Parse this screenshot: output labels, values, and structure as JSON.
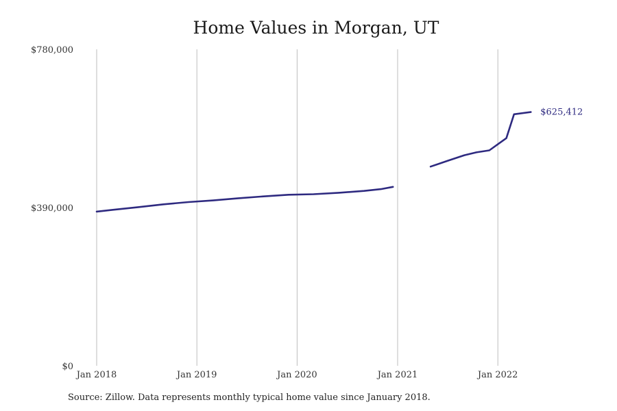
{
  "chart_data": {
    "type": "line",
    "title": "Home Values in Morgan, UT",
    "xlabel": "",
    "ylabel": "",
    "x_range": [
      "2018-01-01",
      "2022-12-01"
    ],
    "ylim": [
      0,
      780000
    ],
    "y_ticks": [
      {
        "value": 0,
        "label": "$0"
      },
      {
        "value": 390000,
        "label": "$390,000"
      },
      {
        "value": 780000,
        "label": "$780,000"
      }
    ],
    "x_ticks": [
      {
        "date": "2018-01-01",
        "label": "Jan 2018"
      },
      {
        "date": "2019-01-01",
        "label": "Jan 2019"
      },
      {
        "date": "2020-01-01",
        "label": "Jan 2020"
      },
      {
        "date": "2021-01-01",
        "label": "Jan 2021"
      },
      {
        "date": "2022-01-01",
        "label": "Jan 2022"
      }
    ],
    "grid": {
      "vertical": true,
      "horizontal": false
    },
    "line_color": "#2e2a80",
    "end_label": "$625,412",
    "series": [
      {
        "segments": [
          [
            {
              "x": "2018-01-01",
              "y": 380000
            },
            {
              "x": "2018-03-01",
              "y": 384500
            },
            {
              "x": "2018-06-01",
              "y": 391000
            },
            {
              "x": "2018-09-01",
              "y": 398000
            },
            {
              "x": "2018-12-01",
              "y": 403500
            },
            {
              "x": "2019-03-01",
              "y": 407500
            },
            {
              "x": "2019-06-01",
              "y": 413000
            },
            {
              "x": "2019-09-01",
              "y": 417500
            },
            {
              "x": "2019-12-01",
              "y": 421500
            },
            {
              "x": "2020-03-01",
              "y": 423000
            },
            {
              "x": "2020-06-01",
              "y": 426500
            },
            {
              "x": "2020-09-01",
              "y": 431000
            },
            {
              "x": "2020-11-01",
              "y": 435500
            },
            {
              "x": "2020-12-15",
              "y": 441000
            }
          ],
          [
            {
              "x": "2021-05-01",
              "y": 491000
            },
            {
              "x": "2021-07-01",
              "y": 505000
            },
            {
              "x": "2021-09-01",
              "y": 519000
            },
            {
              "x": "2021-10-15",
              "y": 526000
            },
            {
              "x": "2021-12-01",
              "y": 531000
            },
            {
              "x": "2022-01-01",
              "y": 546000
            },
            {
              "x": "2022-02-01",
              "y": 561000
            },
            {
              "x": "2022-03-01",
              "y": 620000
            },
            {
              "x": "2022-05-01",
              "y": 625412
            }
          ]
        ]
      }
    ]
  },
  "source_note": "Source: Zillow. Data represents monthly typical home value since January 2018."
}
